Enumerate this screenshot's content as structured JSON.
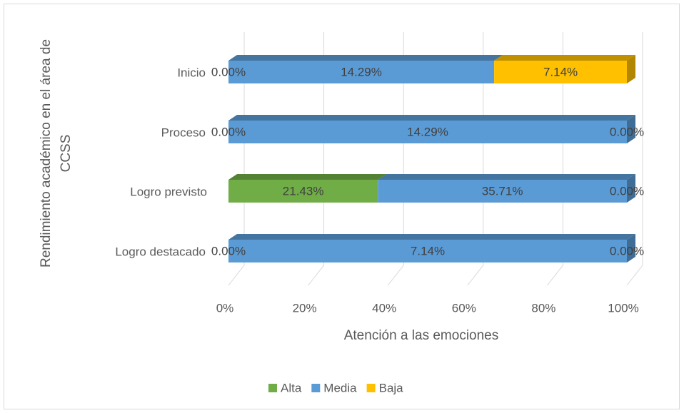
{
  "chart_data": {
    "type": "bar",
    "stacked": "percent",
    "orientation": "horizontal",
    "y_label": [
      "Rendimiento académico en el área de",
      "CCSS"
    ],
    "x_label": "Atención a las emociones",
    "categories": [
      "Inicio",
      "Proceso",
      "Logro previsto",
      "Logro destacado"
    ],
    "series": [
      {
        "name": "Alta",
        "color": "#70ad47",
        "values": [
          0,
          0,
          21.43,
          0
        ],
        "value_labels": [
          "0.00%",
          "0.00%",
          "21.43%",
          "0.00%"
        ]
      },
      {
        "name": "Media",
        "color": "#5b9bd5",
        "values": [
          14.29,
          14.29,
          35.71,
          7.14
        ],
        "value_labels": [
          "14.29%",
          "14.29%",
          "35.71%",
          "7.14%"
        ]
      },
      {
        "name": "Baja",
        "color": "#ffc000",
        "values": [
          7.14,
          0,
          0,
          0
        ],
        "value_labels": [
          "7.14%",
          "0.00%",
          "0.00%",
          "0.00%"
        ]
      }
    ],
    "xlim": [
      0,
      100
    ],
    "xticks": [
      {
        "value": 0,
        "label": "0%"
      },
      {
        "value": 20,
        "label": "20%"
      },
      {
        "value": 40,
        "label": "40%"
      },
      {
        "value": 60,
        "label": "60%"
      },
      {
        "value": 80,
        "label": "80%"
      },
      {
        "value": 100,
        "label": "100%"
      }
    ],
    "grid": true,
    "legend": "bottom"
  }
}
